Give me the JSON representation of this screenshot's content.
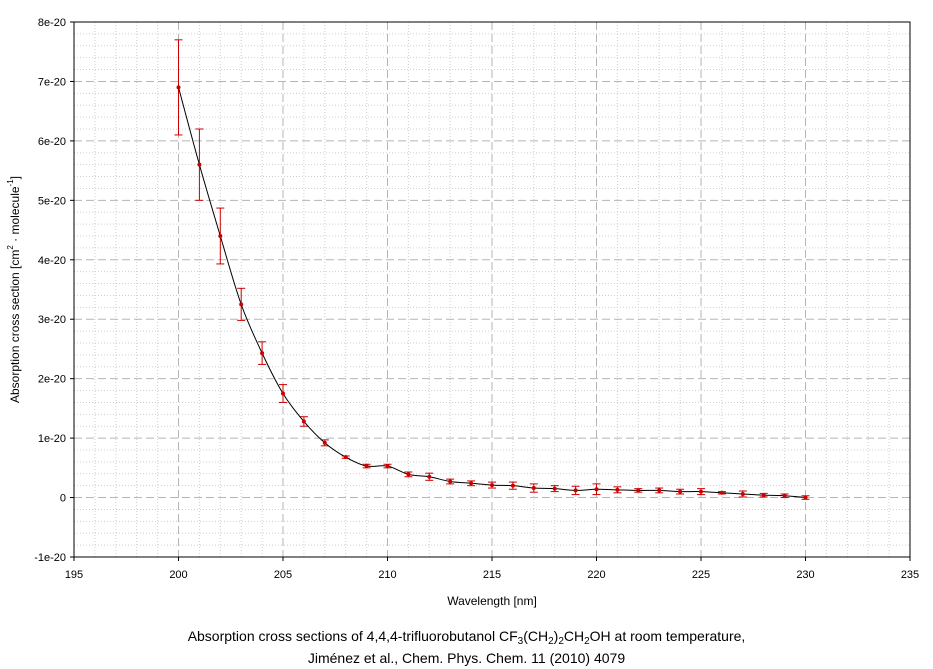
{
  "chart_data": {
    "type": "line",
    "xlabel": "Wavelength [nm]",
    "ylabel_main": "Absorption cross section [cm",
    "ylabel_sup1": "2",
    "ylabel_mid": " · molecule",
    "ylabel_sup2": "-1",
    "ylabel_end": "]",
    "xlim": [
      195,
      235
    ],
    "ylim": [
      -1e-20,
      8e-20
    ],
    "x_ticks": [
      195,
      200,
      205,
      210,
      215,
      220,
      225,
      230,
      235
    ],
    "x_tick_labels": [
      "195",
      "200",
      "205",
      "210",
      "215",
      "220",
      "225",
      "230",
      "235"
    ],
    "y_ticks": [
      -1e-20,
      0,
      1e-20,
      2e-20,
      3e-20,
      4e-20,
      5e-20,
      6e-20,
      7e-20,
      8e-20
    ],
    "y_tick_labels": [
      "-1e-20",
      "0",
      "1e-20",
      "2e-20",
      "3e-20",
      "4e-20",
      "5e-20",
      "6e-20",
      "7e-20",
      "8e-20"
    ],
    "grid": true,
    "line_color": "#000000",
    "marker_color": "#cc0000",
    "errorbar_color": "#cc0000",
    "series": [
      {
        "x": [
          200,
          201,
          202,
          203,
          204,
          205,
          206,
          207,
          208,
          209,
          210,
          211,
          212,
          213,
          214,
          215,
          216,
          217,
          218,
          219,
          220,
          221,
          222,
          223,
          224,
          225,
          226,
          227,
          228,
          229,
          230
        ],
        "y": [
          6.9e-20,
          5.6e-20,
          4.4e-20,
          3.25e-20,
          2.43e-20,
          1.75e-20,
          1.28e-20,
          9.2e-21,
          6.8e-21,
          5.3e-21,
          5.3e-21,
          3.9e-21,
          3.5e-21,
          2.7e-21,
          2.4e-21,
          2.1e-21,
          2e-21,
          1.6e-21,
          1.5e-21,
          1.2e-21,
          1.4e-21,
          1.3e-21,
          1.2e-21,
          1.2e-21,
          1e-21,
          1e-21,
          8e-22,
          6e-22,
          4e-22,
          3e-22,
          0.0
        ],
        "err": [
          8e-21,
          6e-21,
          4.7e-21,
          2.7e-21,
          1.9e-21,
          1.5e-21,
          8e-22,
          5e-22,
          2e-22,
          3e-22,
          3e-22,
          4e-22,
          6e-22,
          4e-22,
          4e-22,
          5e-22,
          6e-22,
          7e-22,
          5e-22,
          7e-22,
          9e-22,
          5e-22,
          3e-22,
          4e-22,
          4e-22,
          5e-22,
          2e-22,
          5e-22,
          3e-22,
          3e-22,
          3e-22
        ]
      }
    ]
  },
  "caption": {
    "line1_pre": "Absorption cross sections of 4,4,4-trifluorobutanol CF",
    "line1_sub1": "3",
    "line1_mid1": "(CH",
    "line1_sub2": "2",
    "line1_mid2": ")",
    "line1_sub3": "2",
    "line1_mid3": "CH",
    "line1_sub4": "2",
    "line1_post": "OH at room temperature,",
    "line2": "Jiménez et al., Chem. Phys. Chem. 11 (2010) 4079"
  }
}
